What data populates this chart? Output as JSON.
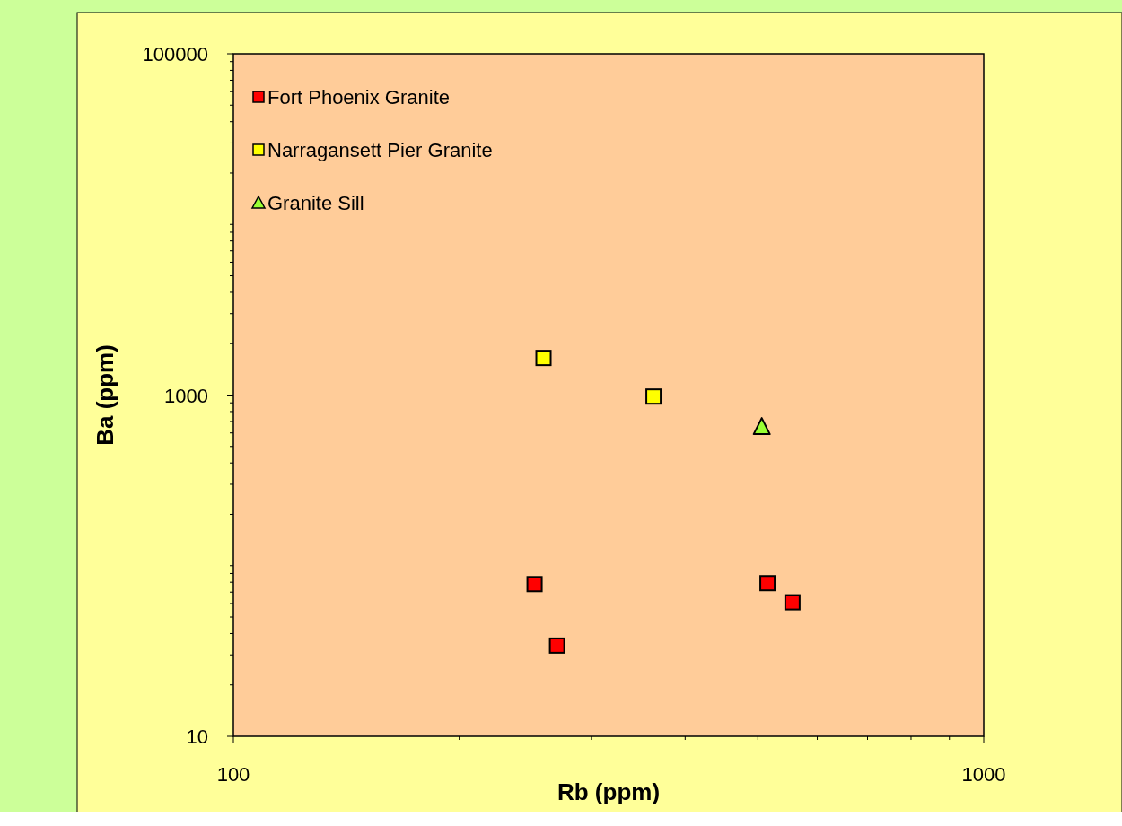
{
  "chart_data": {
    "type": "scatter",
    "xlabel": "Rb (ppm)",
    "ylabel": "Ba (ppm)",
    "log": "xy",
    "grid": false,
    "legend": "top left",
    "xlim": [
      100,
      1000
    ],
    "ylim": [
      10,
      100000
    ],
    "xticks": [
      100,
      {
        "value": 200,
        "label": null
      },
      {
        "value": 300,
        "label": null
      },
      {
        "value": 400,
        "label": null
      },
      {
        "value": 500,
        "label": null
      },
      {
        "value": 600,
        "label": null
      },
      {
        "value": 700,
        "label": null
      },
      {
        "value": 800,
        "label": null
      },
      {
        "value": 900,
        "label": null
      },
      1000
    ],
    "yticks": [
      10,
      {
        "value": 20,
        "label": null
      },
      {
        "value": 30,
        "label": null
      },
      {
        "value": 40,
        "label": null
      },
      {
        "value": 50,
        "label": null
      },
      {
        "value": 60,
        "label": null
      },
      {
        "value": 70,
        "label": null
      },
      {
        "value": 80,
        "label": null
      },
      {
        "value": 90,
        "label": null
      },
      {
        "value": 100,
        "label": null
      },
      {
        "value": 200,
        "label": null
      },
      {
        "value": 300,
        "label": null
      },
      {
        "value": 400,
        "label": null
      },
      {
        "value": 500,
        "label": null
      },
      {
        "value": 600,
        "label": null
      },
      {
        "value": 700,
        "label": null
      },
      {
        "value": 800,
        "label": null
      },
      {
        "value": 900,
        "label": null
      },
      1000,
      {
        "value": 2000,
        "label": null
      },
      {
        "value": 3000,
        "label": null
      },
      {
        "value": 4000,
        "label": null
      },
      {
        "value": 5000,
        "label": null
      },
      {
        "value": 6000,
        "label": null
      },
      {
        "value": 7000,
        "label": null
      },
      {
        "value": 8000,
        "label": null
      },
      {
        "value": 9000,
        "label": null
      },
      {
        "value": 10000,
        "label": null
      },
      {
        "value": 20000,
        "label": null
      },
      {
        "value": 30000,
        "label": null
      },
      {
        "value": 40000,
        "label": null
      },
      {
        "value": 50000,
        "label": null
      },
      {
        "value": 60000,
        "label": null
      },
      {
        "value": 70000,
        "label": null
      },
      {
        "value": 80000,
        "label": null
      },
      {
        "value": 90000,
        "label": null
      },
      100000
    ],
    "series": [
      {
        "name": "Fort Phoenix Granite",
        "color": "#ff0000",
        "marker": "square",
        "x": [
          252,
          270,
          515,
          556
        ],
        "values": [
          78,
          34,
          79,
          61
        ]
      },
      {
        "name": "Narragansett Pier Granite",
        "color": "#ffff00",
        "marker": "square",
        "x": [
          259,
          363
        ],
        "values": [
          1650,
          980
        ]
      },
      {
        "name": "Granite Sill",
        "color": "#99ff33",
        "marker": "triangle",
        "x": [
          506
        ],
        "values": [
          650
        ]
      }
    ]
  }
}
